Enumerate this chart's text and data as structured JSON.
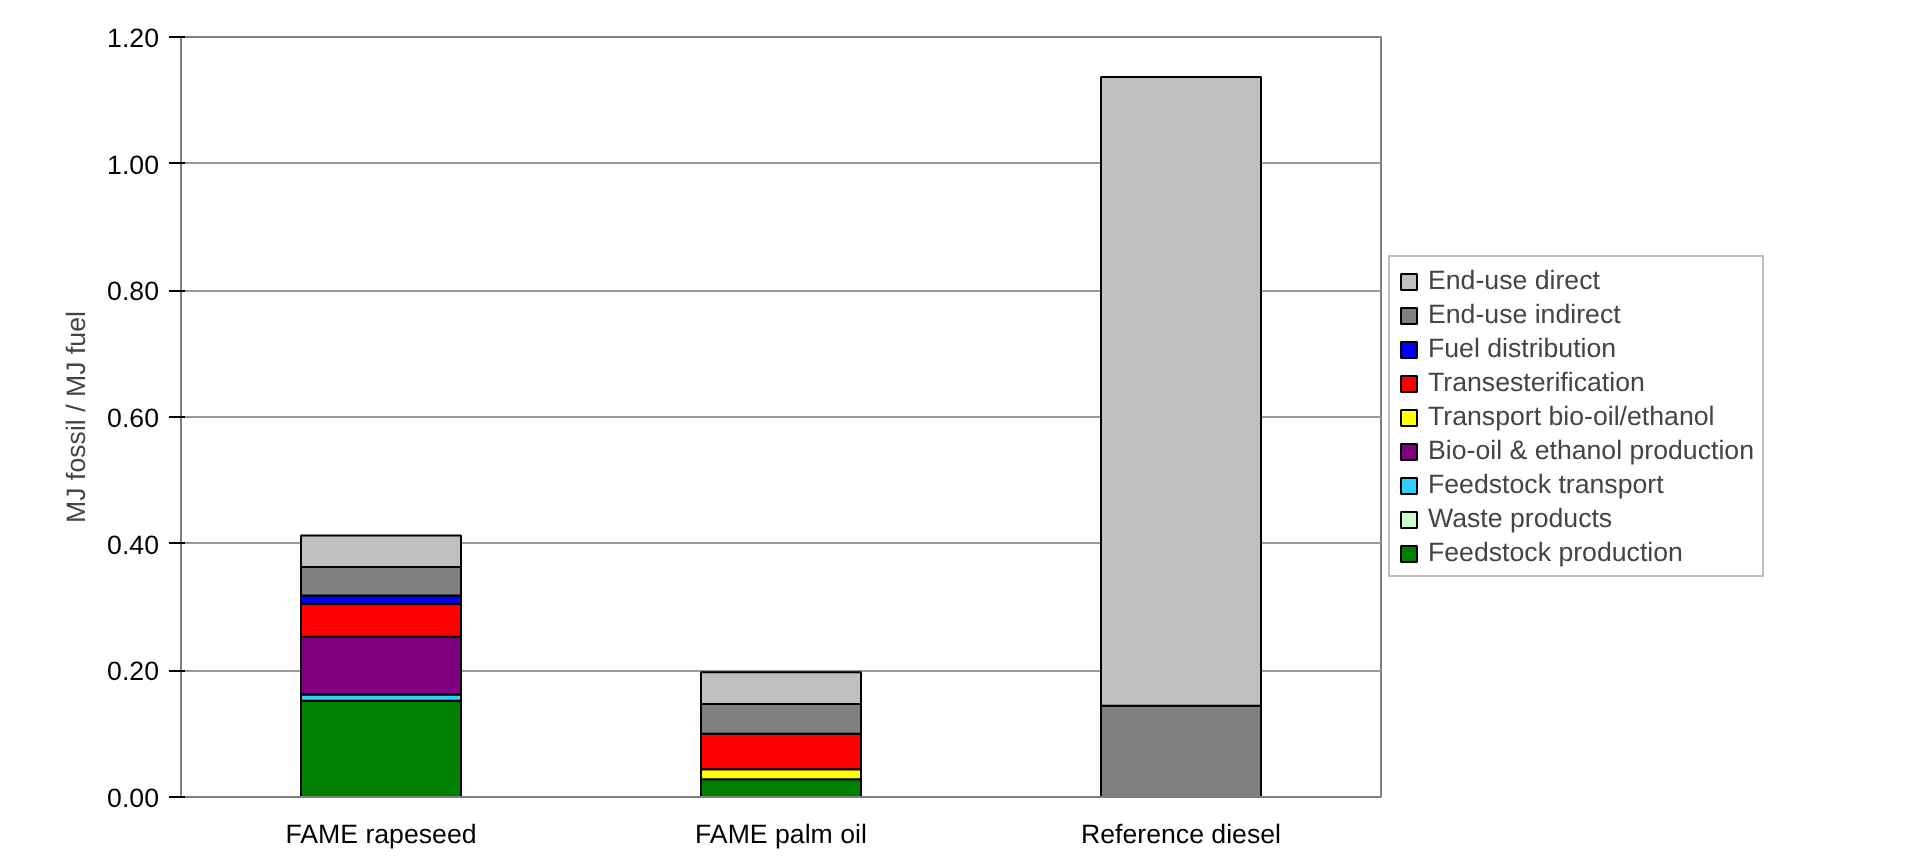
{
  "chart_data": {
    "type": "bar",
    "stacked": true,
    "ylabel": "MJ fossil / MJ fuel",
    "categories": [
      "FAME rapeseed",
      "FAME palm oil",
      "Reference diesel"
    ],
    "series": [
      {
        "name": "Feedstock production",
        "color": "#008000",
        "values": [
          0.152,
          0.028,
          0
        ]
      },
      {
        "name": "Waste products",
        "color": "#ccffcc",
        "values": [
          0,
          0,
          0
        ]
      },
      {
        "name": "Feedstock transport",
        "color": "#33ccff",
        "values": [
          0.01,
          0,
          0
        ]
      },
      {
        "name": "Bio-oil & ethanol production",
        "color": "#800080",
        "values": [
          0.091,
          0,
          0
        ]
      },
      {
        "name": "Transport bio-oil/ethanol",
        "color": "#ffff00",
        "values": [
          0,
          0.016,
          0
        ]
      },
      {
        "name": "Transesterification",
        "color": "#ff0000",
        "values": [
          0.052,
          0.056,
          0
        ]
      },
      {
        "name": "Fuel distribution",
        "color": "#0000ff",
        "values": [
          0.013,
          0,
          0
        ]
      },
      {
        "name": "End-use indirect",
        "color": "#808080",
        "values": [
          0.045,
          0.047,
          0.144
        ]
      },
      {
        "name": "End-use direct",
        "color": "#c0c0c0",
        "values": [
          0.05,
          0.05,
          0.993
        ]
      }
    ],
    "ylim": [
      0,
      1.2
    ],
    "yticks": [
      {
        "value": 0,
        "label": "0.00"
      },
      {
        "value": 0.2,
        "label": "0.20"
      },
      {
        "value": 0.4,
        "label": "0.40"
      },
      {
        "value": 0.6,
        "label": "0.60"
      },
      {
        "value": 0.8,
        "label": "0.80"
      },
      {
        "value": 1.0,
        "label": "1.00"
      },
      {
        "value": 1.2,
        "label": "1.20"
      }
    ],
    "grid": "y",
    "legend": "right"
  }
}
